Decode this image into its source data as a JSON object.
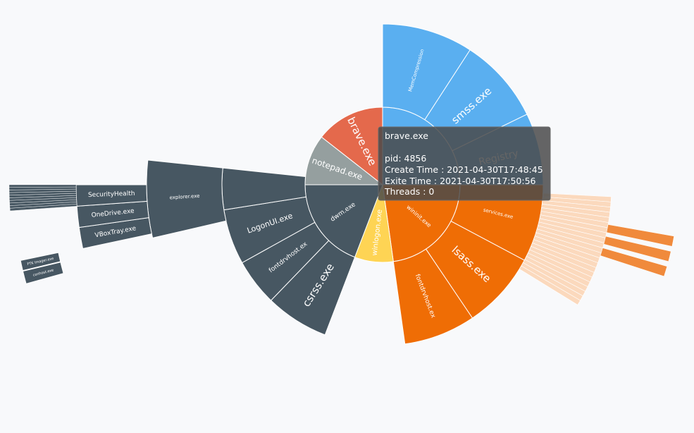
{
  "chart_data": {
    "type": "sunburst",
    "colors": {
      "system": "#5aaff0",
      "brave": "#e4694c",
      "notepad": "#959f9f",
      "dwm": "#475762",
      "winlogon": "#fed454",
      "wininit": "#ef6d05"
    },
    "nodes": {
      "system_group": [
        "MemCompression",
        "smss.exe",
        "Registry"
      ],
      "brave": "brave.exe",
      "notepad": "notepad.exe",
      "dwm": "dwm.exe",
      "winlogon": "winlogon.exe",
      "wininit": "wininit.exe",
      "dwm_children": [
        "LogonUI.exe",
        "fontdrvhost.ex",
        "csrss.exe"
      ],
      "explorer": "explorer.exe",
      "explorer_children": [
        "SecurityHealth",
        "OneDrive.exe",
        "VBoxTray.exe"
      ],
      "ftk": [
        "FTK Imager.exe",
        "conhost.exe"
      ],
      "wininit_children": [
        "services.exe",
        "lsass.exe",
        "fontdrvhost.ex"
      ]
    },
    "tooltip": {
      "title": "brave.exe",
      "lines": [
        "pid: 4856",
        "Create Time : 2021-04-30T17:48:45",
        "Exite Time : 2021-04-30T17:50:56",
        "Threads : 0"
      ]
    }
  }
}
